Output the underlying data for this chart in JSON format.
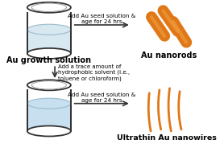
{
  "bg_color": "#ffffff",
  "beaker_outline": "#333333",
  "beaker1_liquid": "#d8e8f0",
  "beaker2_liquid": "#c8dff0",
  "arrow_color": "#333333",
  "nanorod_color": "#e07818",
  "nanowire_color": "#e07818",
  "text_growth_solution": "Au growth solution",
  "text_nanorods": "Au nanorods",
  "text_nanowires": "Ultrathin Au nanowires",
  "text_arrow1": "Add Au seed solution &\nage for 24 hrs",
  "text_arrow2": "Add a trace amount of\nhydrophobic solvent (i.e.,\ntoluene or chloroform)",
  "text_arrow3": "Add Au seed solution &\nage for 24 hrs",
  "font_label": 7.0,
  "font_arrow": 5.2,
  "font_nanowire": 6.8
}
